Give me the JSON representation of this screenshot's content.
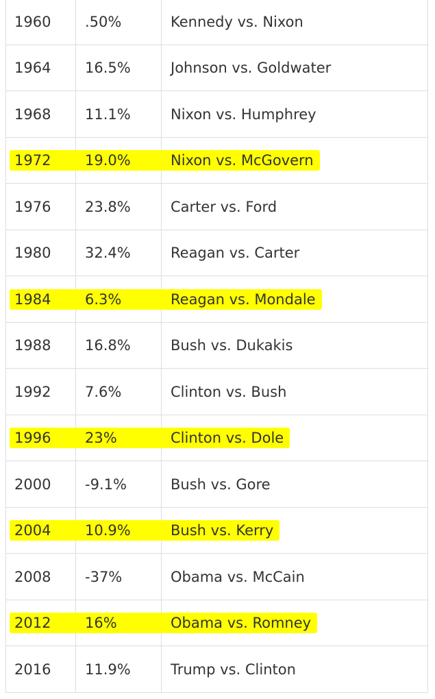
{
  "table": {
    "rows": [
      [
        "1960",
        ".50%",
        "Kennedy vs. Nixon"
      ],
      [
        "1964",
        "16.5%",
        "Johnson vs. Goldwater"
      ],
      [
        "1968",
        "11.1%",
        "Nixon vs. Humphrey"
      ],
      [
        "1972",
        "19.0%",
        "Nixon vs. McGovern"
      ],
      [
        "1976",
        "23.8%",
        "Carter vs. Ford"
      ],
      [
        "1980",
        "32.4%",
        "Reagan vs. Carter"
      ],
      [
        "1984",
        "6.3%",
        "Reagan vs. Mondale"
      ],
      [
        "1988",
        "16.8%",
        "Bush vs. Dukakis"
      ],
      [
        "1992",
        "7.6%",
        "Clinton vs. Bush"
      ],
      [
        "1996",
        "23%",
        "Clinton vs. Dole"
      ],
      [
        "2000",
        "-9.1%",
        "Bush vs. Gore"
      ],
      [
        "2004",
        "10.9%",
        "Bush vs. Kerry"
      ],
      [
        "2008",
        "-37%",
        "Obama vs. McCain"
      ],
      [
        "2012",
        "16%",
        "Obama vs. Romney"
      ],
      [
        "2016",
        "11.9%",
        "Trump vs. Clinton"
      ]
    ],
    "highlight": {
      "color": "#ffff00",
      "rows": [
        3,
        6,
        9,
        11,
        13
      ]
    }
  }
}
